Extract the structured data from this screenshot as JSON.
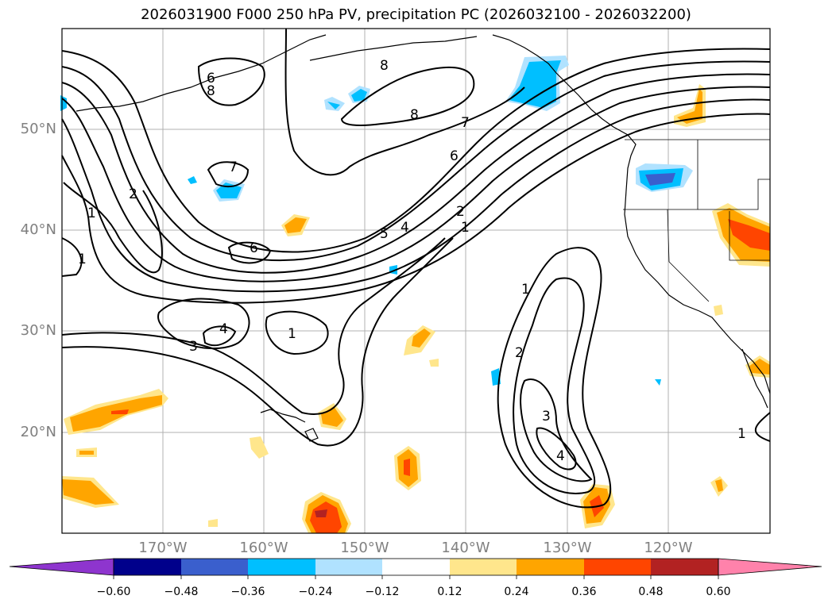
{
  "title": "2026031900 F000 250 hPa PV, precipitation PC (2026032100 - 2026032200)",
  "map": {
    "lon_labels": [
      "170°W",
      "160°W",
      "150°W",
      "140°W",
      "130°W",
      "120°W"
    ],
    "lat_labels": [
      "50°N",
      "40°N",
      "30°N",
      "20°N"
    ],
    "contour_labels": [
      "8",
      "8",
      "8",
      "7",
      "7",
      "6",
      "6",
      "5",
      "4",
      "2",
      "1",
      "1",
      "1",
      "2",
      "3",
      "4",
      "4",
      "6",
      "3",
      "1",
      "1",
      "2",
      "1"
    ],
    "colors": {
      "neg_060": "#8e35ce",
      "neg_048": "#00008b",
      "neg_036": "#3a5fcd",
      "neg_024": "#00bfff",
      "neg_012": "#b0e2ff",
      "neutral": "#ffffff",
      "pos_012": "#ffe68c",
      "pos_024": "#ffa500",
      "pos_036": "#ff4500",
      "pos_048": "#b22222",
      "pos_060": "#ff82ab"
    }
  },
  "colorbar": {
    "ticks": [
      "−0.60",
      "−0.48",
      "−0.36",
      "−0.24",
      "−0.12",
      "0.12",
      "0.24",
      "0.36",
      "0.48",
      "0.60"
    ]
  }
}
